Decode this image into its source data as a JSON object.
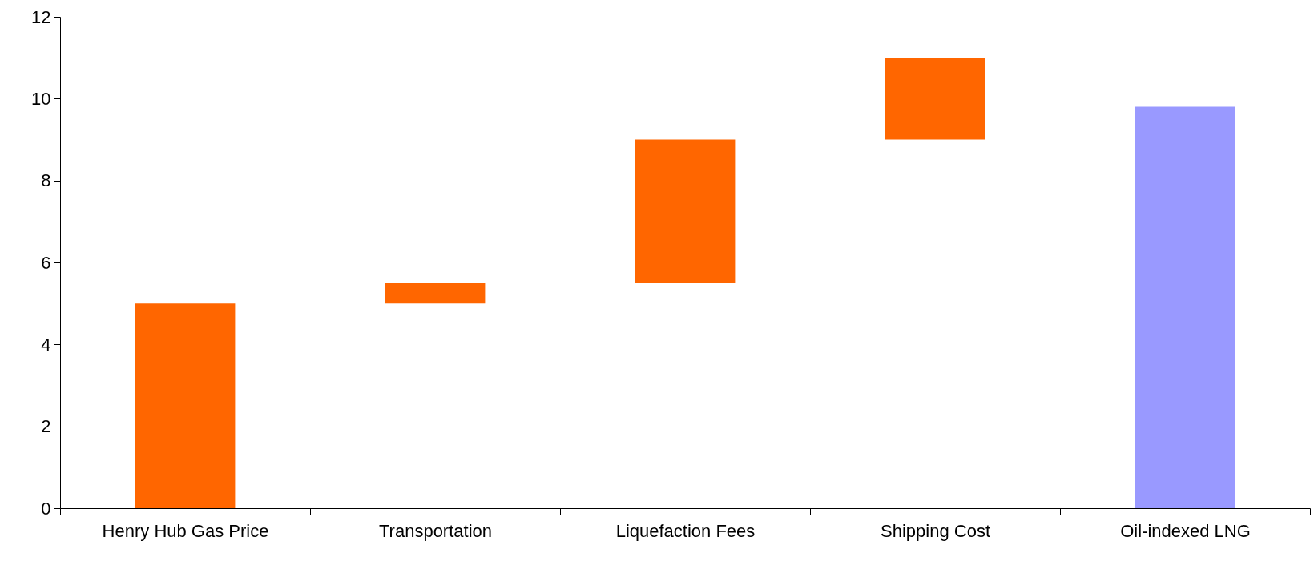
{
  "chart_data": {
    "type": "bar",
    "categories": [
      "Henry Hub Gas Price",
      "Transportation",
      "Liquefaction Fees",
      "Shipping Cost",
      "Oil-indexed LNG"
    ],
    "values": [
      5,
      0.5,
      3.5,
      2,
      9.8
    ],
    "base": [
      0,
      5,
      5.5,
      9,
      0
    ],
    "colors": [
      "#ff6600",
      "#ff6600",
      "#ff6600",
      "#ff6600",
      "#9999ff"
    ],
    "ylim": [
      0,
      12
    ],
    "yticks": [
      0,
      2,
      4,
      6,
      8,
      10,
      12
    ],
    "grid": false
  }
}
